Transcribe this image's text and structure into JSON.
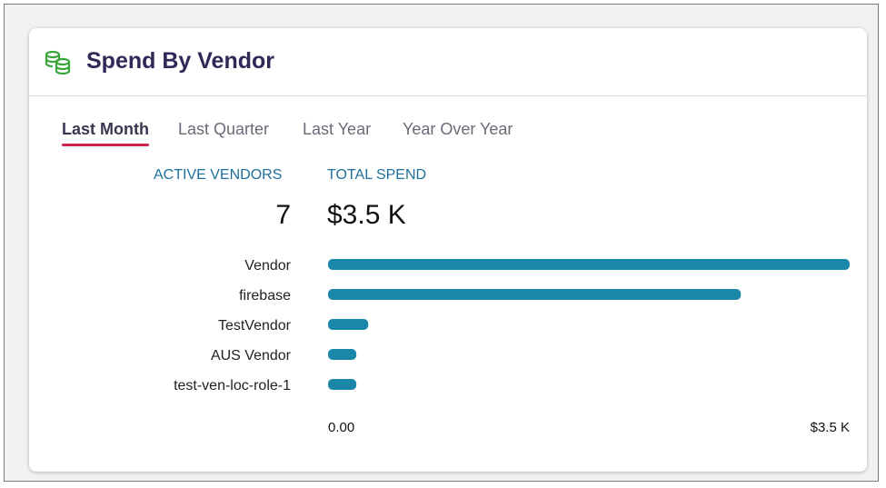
{
  "widget": {
    "title": "Spend By Vendor",
    "icon": "coins-stack-icon",
    "icon_color": "#3aa53a"
  },
  "tabs": [
    {
      "label": "Last Month",
      "active": true
    },
    {
      "label": "Last Quarter",
      "active": false
    },
    {
      "label": "Last Year",
      "active": false
    },
    {
      "label": "Year Over Year",
      "active": false
    }
  ],
  "stats": {
    "active_vendors_label": "ACTIVE VENDORS",
    "active_vendors_value": "7",
    "total_spend_label": "TOTAL SPEND",
    "total_spend_value": "$3.5 K"
  },
  "colors": {
    "bar": "#1b87a8",
    "tab_underline": "#c8264b",
    "title": "#2e2a57",
    "stat_label": "#1d6f99"
  },
  "chart_data": {
    "type": "bar",
    "orientation": "horizontal",
    "categories": [
      "Vendor",
      "firebase",
      "TestVendor",
      "AUS Vendor",
      "test-ven-loc-role-1"
    ],
    "values": [
      3500,
      2770,
      270,
      190,
      190
    ],
    "xlim": [
      0,
      3500
    ],
    "tick_labels": [
      "0.00",
      "$3.5 K"
    ],
    "grid": false,
    "legend": "none"
  }
}
